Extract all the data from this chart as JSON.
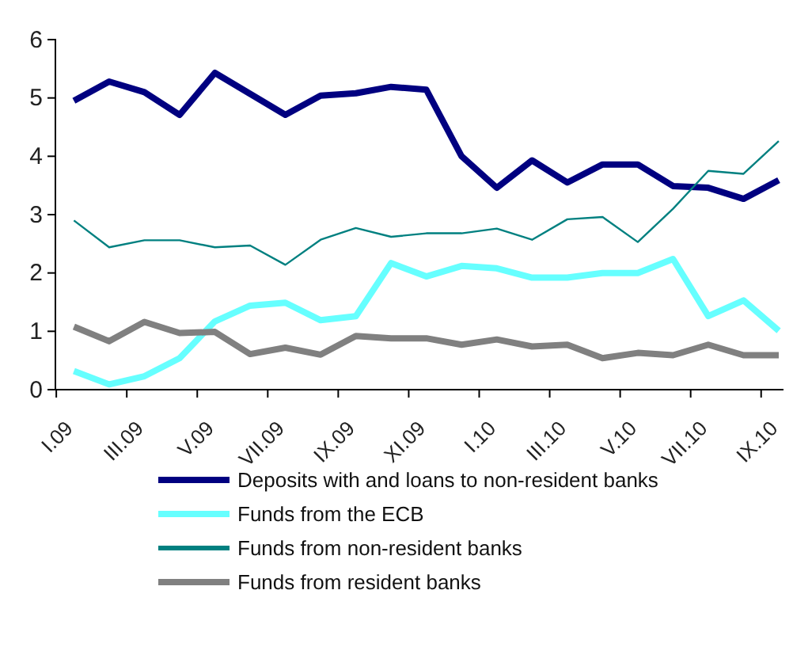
{
  "chart_data": {
    "type": "line",
    "categories": [
      "I.09",
      null,
      "III.09",
      null,
      "V.09",
      null,
      "VII.09",
      null,
      "IX.09",
      null,
      "XI.09",
      null,
      "I.10",
      null,
      "III.10",
      null,
      "V.10",
      null,
      "VII.10",
      null,
      "IX.10"
    ],
    "series": [
      {
        "name": "Deposits with and loans to non-resident banks",
        "color": "#000080",
        "values": [
          4.95,
          5.28,
          5.1,
          4.71,
          5.43,
          5.07,
          4.71,
          5.04,
          5.08,
          5.19,
          5.14,
          4.0,
          3.46,
          3.93,
          3.55,
          3.86,
          3.86,
          3.49,
          3.46,
          3.27,
          3.59
        ]
      },
      {
        "name": "Funds from the ECB",
        "color": "#66ffff",
        "values": [
          0.32,
          0.09,
          0.23,
          0.54,
          1.17,
          1.44,
          1.49,
          1.19,
          1.26,
          2.17,
          1.94,
          2.12,
          2.08,
          1.92,
          1.92,
          2.0,
          2.0,
          2.24,
          1.26,
          1.53,
          1.01
        ]
      },
      {
        "name": "Funds from non-resident banks",
        "color": "#008080",
        "values": [
          2.9,
          2.44,
          2.56,
          2.56,
          2.44,
          2.47,
          2.14,
          2.57,
          2.77,
          2.62,
          2.68,
          2.68,
          2.76,
          2.57,
          2.92,
          2.96,
          2.53,
          3.1,
          3.75,
          3.7,
          4.26
        ]
      },
      {
        "name": "Funds from resident banks",
        "color": "#808080",
        "values": [
          1.08,
          0.83,
          1.16,
          0.97,
          0.99,
          0.61,
          0.72,
          0.6,
          0.92,
          0.88,
          0.88,
          0.77,
          0.86,
          0.74,
          0.77,
          0.54,
          0.63,
          0.59,
          0.77,
          0.59,
          0.59
        ]
      }
    ],
    "ylim": [
      0,
      6
    ],
    "yticks": [
      0,
      1,
      2,
      3,
      4,
      5,
      6
    ],
    "grid": false,
    "legend": "bottom",
    "marker": "none"
  }
}
